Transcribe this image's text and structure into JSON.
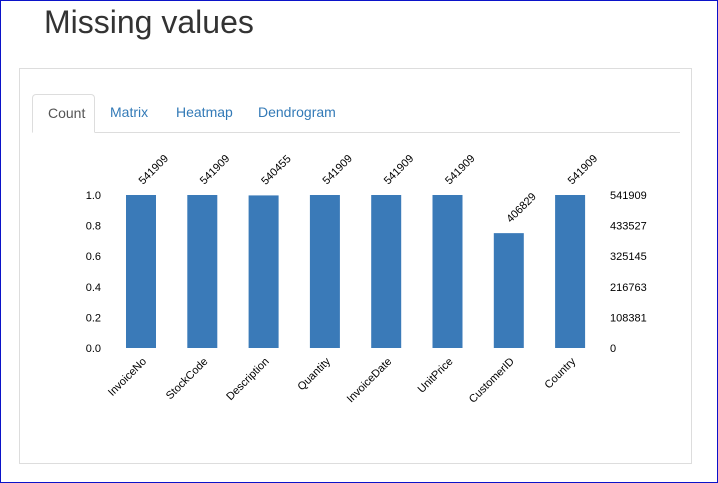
{
  "page": {
    "title": "Missing values"
  },
  "tabs": [
    {
      "label": "Count",
      "active": true
    },
    {
      "label": "Matrix",
      "active": false
    },
    {
      "label": "Heatmap",
      "active": false
    },
    {
      "label": "Dendrogram",
      "active": false
    }
  ],
  "colors": {
    "bar": "#3a7ab8",
    "tab_link": "#337ab7"
  },
  "chart_data": {
    "type": "bar",
    "categories": [
      "InvoiceNo",
      "StockCode",
      "Description",
      "Quantity",
      "InvoiceDate",
      "UnitPrice",
      "CustomerID",
      "Country"
    ],
    "values": [
      541909,
      541909,
      540455,
      541909,
      541909,
      541909,
      406829,
      541909
    ],
    "value_labels": [
      "541909",
      "541909",
      "540455",
      "541909",
      "541909",
      "541909",
      "406829",
      "541909"
    ],
    "total": 541909,
    "left_ticks": [
      "0.0",
      "0.2",
      "0.4",
      "0.6",
      "0.8",
      "1.0"
    ],
    "right_ticks": [
      "0",
      "108381",
      "216763",
      "325145",
      "433527",
      "541909"
    ],
    "ylim": [
      0,
      1
    ],
    "grid": false
  }
}
